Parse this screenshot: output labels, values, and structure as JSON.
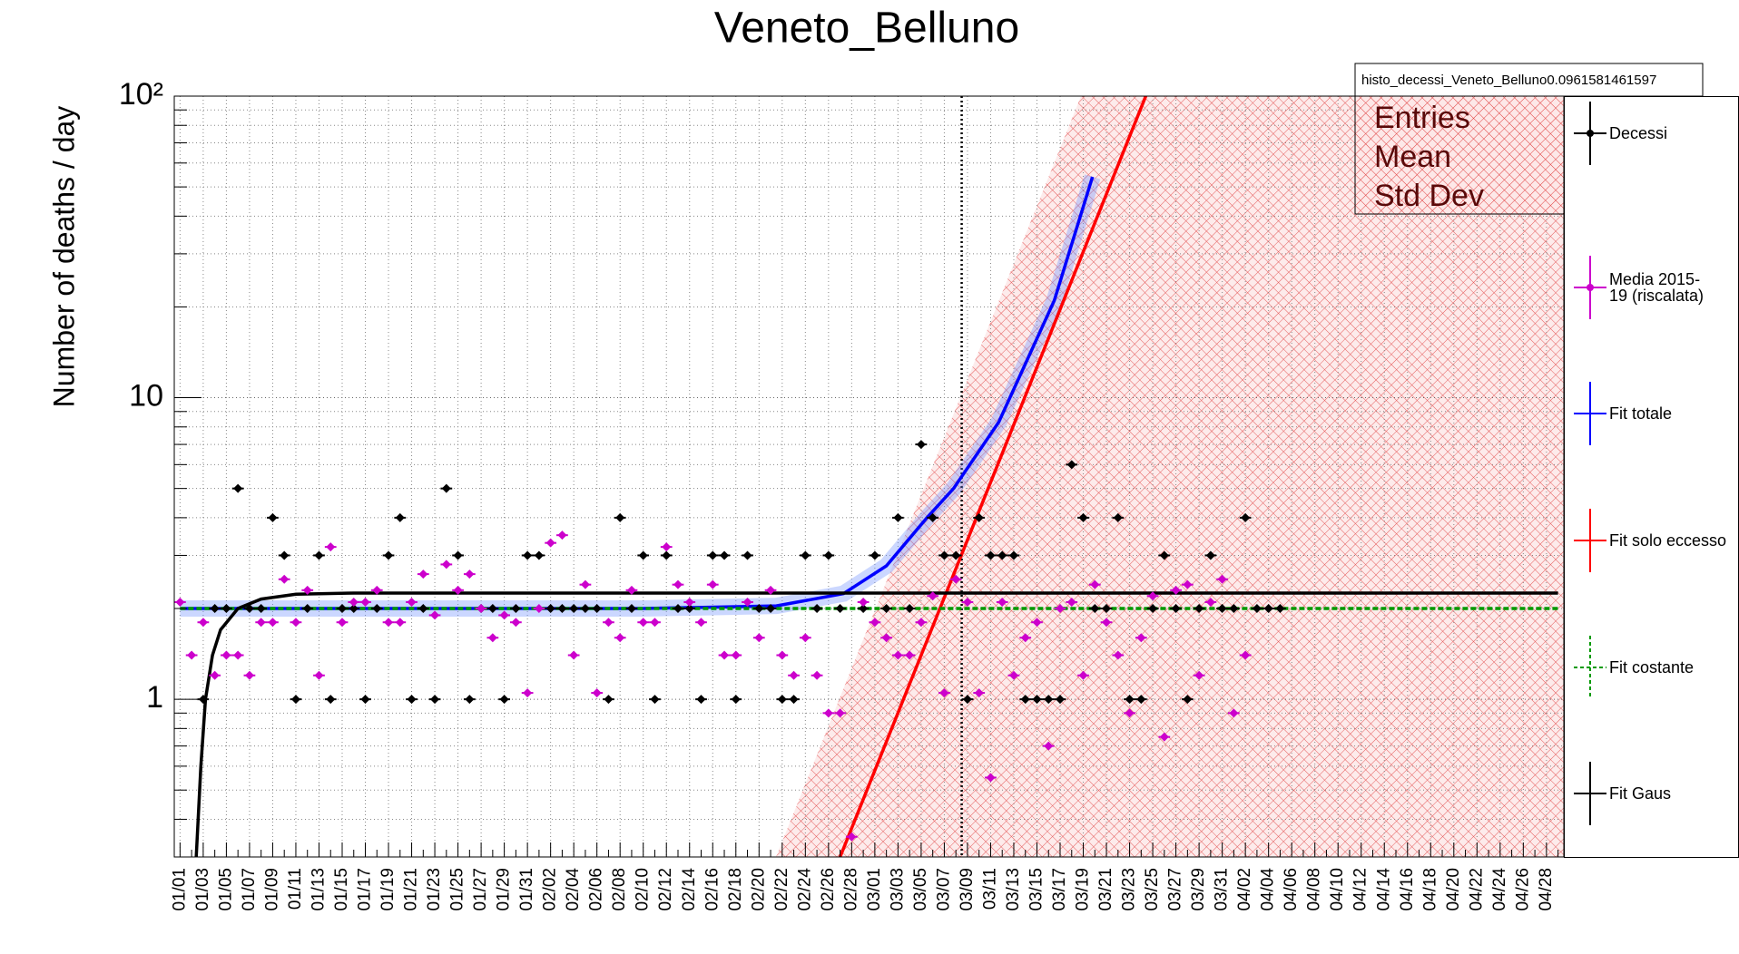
{
  "chart_data": {
    "type": "errorplot",
    "title": "Veneto_Belluno",
    "y_label": "Number of deaths / day",
    "ylog": true,
    "ylim": [
      0.3,
      100
    ],
    "yticks": [
      1,
      10,
      {
        "value": 100,
        "label": "10²"
      }
    ],
    "yminor": [
      0.3,
      0.4,
      0.5,
      0.6,
      0.7,
      0.8,
      0.9,
      2,
      3,
      4,
      5,
      6,
      7,
      8,
      9,
      20,
      30,
      40,
      50,
      60,
      70,
      80,
      90
    ],
    "grid": true,
    "categories": [
      "01/01",
      null,
      "01/03",
      null,
      "01/05",
      null,
      "01/07",
      null,
      "01/09",
      null,
      "01/11",
      null,
      "01/13",
      null,
      "01/15",
      null,
      "01/17",
      null,
      "01/19",
      null,
      "01/21",
      null,
      "01/23",
      null,
      "01/25",
      null,
      "01/27",
      null,
      "01/29",
      null,
      "01/31",
      null,
      "02/02",
      null,
      "02/04",
      null,
      "02/06",
      null,
      "02/08",
      null,
      "02/10",
      null,
      "02/12",
      null,
      "02/14",
      null,
      "02/16",
      null,
      "02/18",
      null,
      "02/20",
      null,
      "02/22",
      null,
      "02/24",
      null,
      "02/26",
      null,
      "02/28",
      null,
      "03/01",
      null,
      "03/03",
      null,
      "03/05",
      null,
      "03/07",
      null,
      "03/09",
      null,
      "03/11",
      null,
      "03/13",
      null,
      "03/15",
      null,
      "03/17",
      null,
      "03/19",
      null,
      "03/21",
      null,
      "03/23",
      null,
      "03/25",
      null,
      "03/27",
      null,
      "03/29",
      null,
      "03/31",
      null,
      "04/02",
      null,
      "04/04",
      null,
      "04/06",
      null,
      "04/08",
      null,
      "04/10",
      null,
      "04/12",
      null,
      "04/14",
      null,
      "04/16",
      null,
      "04/18",
      null,
      "04/20",
      null,
      "04/22",
      null,
      "04/24",
      null,
      "04/26",
      null,
      "04/28",
      null
    ],
    "series": [
      {
        "name": "Decessi",
        "color": "#000000",
        "values": [
          null,
          null,
          1,
          2,
          2,
          5,
          2,
          2,
          4,
          3,
          1,
          2,
          3,
          1,
          2,
          2,
          1,
          2,
          3,
          4,
          1,
          2,
          1,
          5,
          3,
          1,
          2,
          2,
          1,
          2,
          3,
          3,
          2,
          2,
          2,
          2,
          2,
          1,
          4,
          2,
          3,
          1,
          3,
          2,
          2,
          1,
          3,
          3,
          1,
          3,
          2,
          2,
          1,
          1,
          3,
          2,
          3,
          2,
          null,
          2,
          3,
          2,
          4,
          2,
          7,
          4,
          3,
          3,
          1,
          4,
          3,
          3,
          3,
          1,
          1,
          1,
          1,
          6,
          4,
          2,
          2,
          4,
          1,
          1,
          2,
          3,
          2,
          1,
          2,
          3,
          2,
          2,
          4,
          2,
          2,
          2,
          null,
          null,
          null,
          null,
          null,
          null,
          null,
          null,
          null,
          null,
          null,
          null,
          null,
          null,
          null,
          null,
          null,
          null,
          null,
          null,
          null,
          null,
          null,
          null
        ]
      },
      {
        "name": "Media 2015-19 (riscalata)",
        "color": "#cc00cc",
        "values": [
          2.1,
          1.4,
          1.8,
          1.2,
          1.4,
          1.4,
          1.2,
          1.8,
          1.8,
          2.5,
          1.8,
          2.3,
          1.2,
          3.2,
          1.8,
          2.1,
          2.1,
          2.3,
          1.8,
          1.8,
          2.1,
          2.6,
          1.9,
          2.8,
          2.3,
          2.6,
          2.0,
          1.6,
          1.9,
          1.8,
          1.05,
          2.0,
          3.3,
          3.5,
          1.4,
          2.4,
          1.05,
          1.8,
          1.6,
          2.3,
          1.8,
          1.8,
          3.2,
          2.4,
          2.1,
          1.8,
          2.4,
          1.4,
          1.4,
          2.1,
          1.6,
          2.3,
          1.4,
          1.2,
          1.6,
          1.2,
          0.9,
          0.9,
          0.35,
          2.1,
          1.8,
          1.6,
          1.4,
          1.4,
          1.8,
          2.2,
          1.05,
          2.5,
          2.1,
          1.05,
          0.55,
          2.1,
          1.2,
          1.6,
          1.8,
          0.7,
          2.0,
          2.1,
          1.2,
          2.4,
          1.8,
          1.4,
          0.9,
          1.6,
          2.2,
          0.75,
          2.3,
          2.4,
          1.2,
          2.1,
          2.5,
          0.9,
          1.4,
          null,
          null,
          null,
          null,
          null,
          null,
          null,
          null,
          null,
          null,
          null,
          null,
          null,
          null,
          null,
          null,
          null,
          null,
          null,
          null,
          null,
          null,
          null,
          null,
          null,
          null,
          null
        ]
      }
    ],
    "fits": [
      {
        "name": "Fit totale",
        "color": "#0000ff",
        "x": [
          0,
          20,
          40,
          51.5,
          57.3,
          61,
          64.5,
          66.8,
          70.7,
          75.5,
          78.8
        ],
        "values": [
          2.0,
          2.0,
          2.0,
          2.04,
          2.24,
          2.77,
          4.0,
          5.0,
          8.3,
          21,
          54
        ]
      },
      {
        "name": "Fit solo eccesso",
        "color": "#ff0000",
        "x": [
          57,
          83.4
        ],
        "values": [
          0.3,
          100
        ]
      },
      {
        "name": "Fit costante",
        "color": "#009900",
        "style": "dashed",
        "x": [
          0,
          119
        ],
        "values": [
          2.0,
          2.0
        ]
      },
      {
        "name": "Fit Gaus",
        "color": "#000000",
        "x": [
          1.4,
          1.8,
          2.2,
          2.8,
          3.5,
          5,
          7,
          10,
          15,
          119
        ],
        "values": [
          0.3,
          0.6,
          1.0,
          1.4,
          1.7,
          2.0,
          2.15,
          2.23,
          2.25,
          2.25
        ]
      }
    ],
    "marker_x": 67.5,
    "stats": {
      "header": "histo_decessi_Veneto_Belluno0.0961581461597",
      "labels": [
        "Entries",
        "Mean",
        "Std Dev"
      ]
    }
  }
}
